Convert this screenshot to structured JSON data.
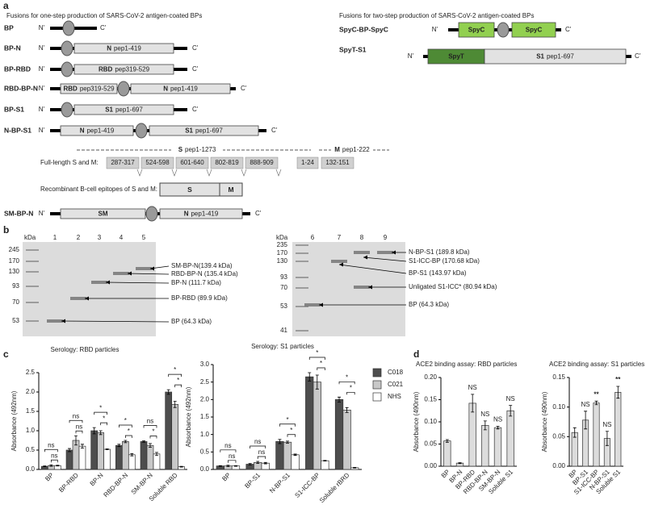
{
  "panel_a": {
    "label": "a",
    "left_title": "Fusions for one-step production of SARS-CoV-2 antigen-coated BPs",
    "right_title": "Fusions for two-step production of SARS-CoV-2 antigen-coated BPs",
    "n_term": "N'",
    "c_term": "C'",
    "constructs": [
      {
        "name": "BP",
        "domains": []
      },
      {
        "name": "BP-N",
        "domains": [
          {
            "name": "N",
            "range": "pep1-419"
          }
        ]
      },
      {
        "name": "BP-RBD",
        "domains": [
          {
            "name": "RBD",
            "range": "pep319-529"
          }
        ]
      },
      {
        "name": "RBD-BP-N",
        "domains": [
          {
            "name": "RBD",
            "range": "pep319-529"
          },
          {
            "name": "N",
            "range": "pep1-419"
          }
        ]
      },
      {
        "name": "BP-S1",
        "domains": [
          {
            "name": "S1",
            "range": "pep1-697"
          }
        ]
      },
      {
        "name": "N-BP-S1",
        "domains": [
          {
            "name": "N",
            "range": "pep1-419"
          },
          {
            "name": "S1",
            "range": "pep1-697"
          }
        ]
      },
      {
        "name": "SM-BP-N",
        "domains": [
          {
            "name": "SM"
          },
          {
            "name": "N",
            "range": "pep1-419"
          }
        ]
      },
      {
        "name": "SpyC-BP-SpyC",
        "domains": [
          {
            "name": "SpyC"
          },
          {
            "name": "SpyC"
          }
        ]
      },
      {
        "name": "SpyT-S1",
        "domains": [
          {
            "name": "SpyT"
          },
          {
            "name": "S1",
            "range": "pep1-697"
          }
        ]
      }
    ],
    "full_length": {
      "label": "Full-length S and M:",
      "s_label": {
        "name": "S",
        "range": "pep1-1273"
      },
      "m_label": {
        "name": "M",
        "range": "pep1-222"
      },
      "s_segments": [
        "287-317",
        "524-598",
        "601-640",
        "802-819",
        "888-909"
      ],
      "m_segments": [
        "1-24",
        "132-151"
      ]
    },
    "epitopes": {
      "label": "Recombinant B-cell epitopes of S and M:",
      "parts": [
        "S",
        "M"
      ]
    }
  },
  "panel_b": {
    "label": "b",
    "gels": [
      {
        "unit": "kDa",
        "markers": [
          "245",
          "170",
          "130",
          "93",
          "70",
          "53"
        ],
        "lanes": [
          "1",
          "2",
          "3",
          "4",
          "5"
        ],
        "bands": [
          "SM-BP-N(139.4 kDa)",
          "RBD-BP-N (135.4 kDa)",
          "BP-N (111.7 kDa)",
          "BP-RBD (89.9 kDa)",
          "BP (64.3 kDa)"
        ]
      },
      {
        "unit": "kDa",
        "markers": [
          "235",
          "170",
          "130",
          "93",
          "70",
          "53",
          "41"
        ],
        "lanes": [
          "6",
          "7",
          "8",
          "9"
        ],
        "bands": [
          "N-BP-S1 (189.8 kDa)",
          "S1-ICC-BP (170.68 kDa)",
          "BP-S1 (143.97 kDa)",
          "Unligated S1-ICC* (80.94 kDa)",
          "BP (64.3 kDa)"
        ]
      }
    ]
  },
  "panel_c": {
    "label": "c"
  },
  "panel_d": {
    "label": "d"
  },
  "chart_data": [
    {
      "type": "bar",
      "title": "Serology: RBD particles",
      "y_label": "Absorbance (492nm)",
      "categories": [
        "BP",
        "BP-RBD",
        "BP-N",
        "RBD-BP-N",
        "SM-BP-N",
        "Soluble RBD"
      ],
      "series": [
        {
          "name": "C018",
          "color": "#4d4d4d",
          "values": [
            0.08,
            0.5,
            1.0,
            0.62,
            0.72,
            2.0
          ],
          "errors": [
            0.01,
            0.04,
            0.08,
            0.03,
            0.02,
            0.06
          ]
        },
        {
          "name": "C021",
          "color": "#c8c8c8",
          "values": [
            0.1,
            0.75,
            0.95,
            0.72,
            0.62,
            1.68
          ],
          "errors": [
            0.02,
            0.12,
            0.05,
            0.03,
            0.05,
            0.08
          ]
        },
        {
          "name": "NHS",
          "color": "#ffffff",
          "values": [
            0.1,
            0.6,
            0.52,
            0.38,
            0.4,
            0.07
          ],
          "errors": [
            0.01,
            0.05,
            0.01,
            0.03,
            0.04,
            0.01
          ]
        }
      ],
      "annotations": [
        [
          "ns",
          "ns"
        ],
        [
          "ns",
          "ns"
        ],
        [
          "*",
          "*"
        ],
        [
          "*",
          "*"
        ],
        [
          "*",
          "ns"
        ],
        [
          "*",
          "*"
        ]
      ],
      "ylim": [
        0,
        2.5
      ],
      "yticks": [
        {
          "value": 0,
          "label": "0.0"
        },
        0.5,
        {
          "value": 1,
          "label": "1.0"
        },
        1.5,
        {
          "value": 2,
          "label": "2.0"
        },
        2.5
      ]
    },
    {
      "type": "bar",
      "title": "Serology: S1 particles",
      "y_label": "Absorbance (492nm)",
      "categories": [
        "BP",
        "BP-S1",
        "N-BP-S1",
        "S1-ICC-BP",
        "Soluble rBRD"
      ],
      "series": [
        {
          "name": "C018",
          "color": "#4d4d4d",
          "values": [
            0.1,
            0.15,
            0.8,
            2.65,
            2.0
          ],
          "errors": [
            0.01,
            0.02,
            0.06,
            0.12,
            0.07
          ]
        },
        {
          "name": "C021",
          "color": "#c8c8c8",
          "values": [
            0.1,
            0.2,
            0.78,
            2.5,
            1.7
          ],
          "errors": [
            0.02,
            0.03,
            0.03,
            0.2,
            0.07
          ]
        },
        {
          "name": "NHS",
          "color": "#ffffff",
          "values": [
            0.1,
            0.18,
            0.42,
            0.25,
            0.05
          ],
          "errors": [
            0.01,
            0.02,
            0.02,
            0.01,
            0.01
          ]
        }
      ],
      "annotations": [
        [
          "ns",
          "ns"
        ],
        [
          "ns",
          "ns"
        ],
        [
          "*",
          "*"
        ],
        [
          "*",
          "*"
        ],
        [
          "*",
          "*"
        ]
      ],
      "ylim": [
        0,
        3
      ],
      "yticks": [
        {
          "value": 0,
          "label": "0.0"
        },
        0.5,
        {
          "value": 1,
          "label": "1.0"
        },
        1.5,
        {
          "value": 2,
          "label": "2.0"
        },
        2.5,
        {
          "value": 3,
          "label": "3.0"
        }
      ],
      "legend": "right"
    },
    {
      "type": "bar",
      "title": "ACE2 binding assay: RBD particles",
      "y_label": "Absorbance (490nm)",
      "categories": [
        "BP",
        "BP-N",
        "BP-RBD",
        "RBD-BP-N",
        "SM-BP-N",
        "Soluble S1"
      ],
      "values": [
        0.057,
        0.007,
        0.142,
        0.092,
        0.087,
        0.125
      ],
      "errors": [
        0.003,
        0.001,
        0.02,
        0.01,
        0.003,
        0.012
      ],
      "color": "#dcdcdc",
      "annotations": [
        null,
        null,
        "NS",
        "NS",
        "NS",
        "NS"
      ],
      "ylim": [
        0,
        0.2
      ],
      "yticks": [
        {
          "value": 0,
          "label": "0.00"
        },
        {
          "value": 0.05,
          "label": "0.05"
        },
        {
          "value": 0.1,
          "label": "0.10"
        },
        {
          "value": 0.15,
          "label": "0.15"
        },
        {
          "value": 0.2,
          "label": "0.20"
        }
      ]
    },
    {
      "type": "bar",
      "title": "ACE2 binding assay: S1 particles",
      "y_label": "Absorbance (490nm)",
      "categories": [
        "BP",
        "BP-S1",
        "S1-ICC-BP",
        "N-BP-S1",
        "Soluble S1"
      ],
      "values": [
        0.057,
        0.078,
        0.107,
        0.047,
        0.125
      ],
      "errors": [
        0.008,
        0.015,
        0.003,
        0.012,
        0.01
      ],
      "color": "#dcdcdc",
      "annotations": [
        null,
        "NS",
        "**",
        "NS",
        "**"
      ],
      "ylim": [
        0,
        0.15
      ],
      "yticks": [
        {
          "value": 0,
          "label": "0.00"
        },
        {
          "value": 0.05,
          "label": "0.05"
        },
        {
          "value": 0.1,
          "label": "0.10"
        },
        {
          "value": 0.15,
          "label": "0.15"
        }
      ]
    }
  ]
}
